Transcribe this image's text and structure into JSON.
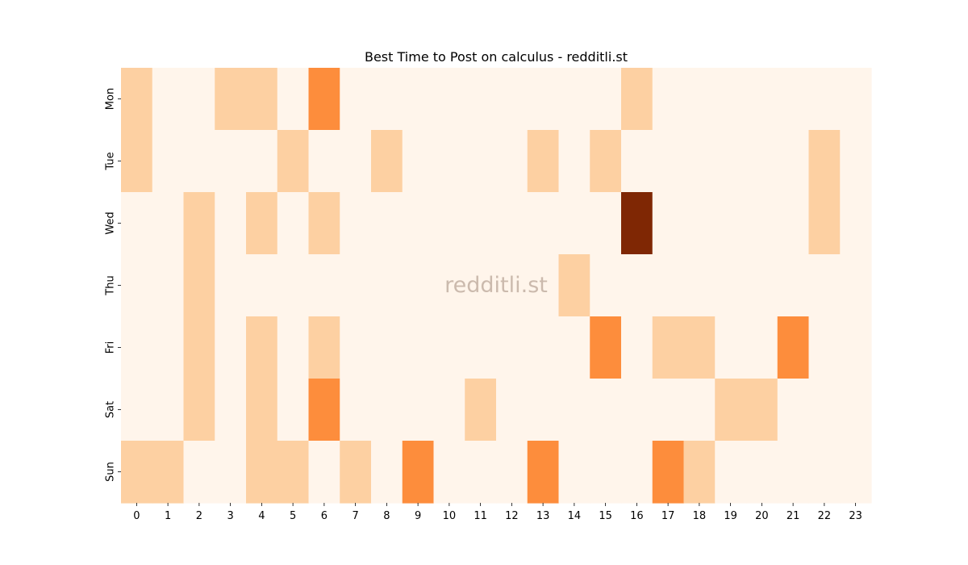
{
  "chart_data": {
    "type": "heatmap",
    "title": "Best Time to Post on calculus - redditli.st",
    "watermark": "redditli.st",
    "xlabel": "",
    "ylabel": "",
    "x_categories": [
      "0",
      "1",
      "2",
      "3",
      "4",
      "5",
      "6",
      "7",
      "8",
      "9",
      "10",
      "11",
      "12",
      "13",
      "14",
      "15",
      "16",
      "17",
      "18",
      "19",
      "20",
      "21",
      "22",
      "23"
    ],
    "y_categories": [
      "Mon",
      "Tue",
      "Wed",
      "Thu",
      "Fri",
      "Sat",
      "Sun"
    ],
    "values": [
      [
        1,
        0,
        0,
        1,
        1,
        0,
        2,
        0,
        0,
        0,
        0,
        0,
        0,
        0,
        0,
        0,
        1,
        0,
        0,
        0,
        0,
        0,
        0,
        0
      ],
      [
        1,
        0,
        0,
        0,
        0,
        1,
        0,
        0,
        1,
        0,
        0,
        0,
        0,
        1,
        0,
        1,
        0,
        0,
        0,
        0,
        0,
        0,
        1,
        0
      ],
      [
        0,
        0,
        1,
        0,
        1,
        0,
        1,
        0,
        0,
        0,
        0,
        0,
        0,
        0,
        0,
        0,
        4,
        0,
        0,
        0,
        0,
        0,
        1,
        0
      ],
      [
        0,
        0,
        1,
        0,
        0,
        0,
        0,
        0,
        0,
        0,
        0,
        0,
        0,
        0,
        1,
        0,
        0,
        0,
        0,
        0,
        0,
        0,
        0,
        0
      ],
      [
        0,
        0,
        1,
        0,
        1,
        0,
        1,
        0,
        0,
        0,
        0,
        0,
        0,
        0,
        0,
        2,
        0,
        1,
        1,
        0,
        0,
        2,
        0,
        0
      ],
      [
        0,
        0,
        1,
        0,
        1,
        0,
        2,
        0,
        0,
        0,
        0,
        1,
        0,
        0,
        0,
        0,
        0,
        0,
        0,
        1,
        1,
        0,
        0,
        0
      ],
      [
        1,
        1,
        0,
        0,
        1,
        1,
        0,
        1,
        0,
        2,
        0,
        0,
        0,
        2,
        0,
        0,
        0,
        2,
        1,
        0,
        0,
        0,
        0,
        0
      ]
    ],
    "colormap": "Oranges",
    "color_scale": {
      "0": "#fff5eb",
      "1": "#fdd0a2",
      "2": "#fd8d3c",
      "4": "#7f2704"
    },
    "colorbar": false,
    "grid": false
  }
}
